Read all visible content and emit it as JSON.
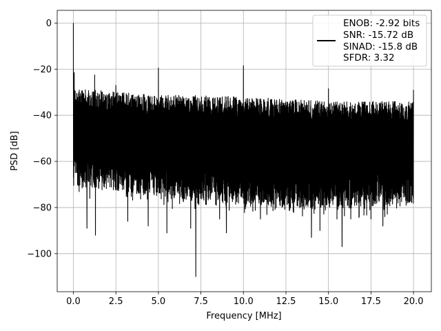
{
  "chart_data": {
    "type": "line",
    "xlabel": "Frequency [MHz]",
    "ylabel": "PSD [dB]",
    "xlim": [
      -0.95,
      21.05
    ],
    "ylim": [
      -116.5,
      5.5
    ],
    "xticks": [
      0.0,
      2.5,
      5.0,
      7.5,
      10.0,
      12.5,
      15.0,
      17.5,
      20.0
    ],
    "xtick_labels": [
      "0.0",
      "2.5",
      "5.0",
      "7.5",
      "10.0",
      "12.5",
      "15.0",
      "17.5",
      "20.0"
    ],
    "yticks": [
      0,
      -20,
      -40,
      -60,
      -80,
      -100
    ],
    "ytick_labels": [
      "0",
      "−20",
      "−40",
      "−60",
      "−80",
      "−100"
    ],
    "grid": true,
    "legend_position": "top-right",
    "legend": [
      "ENOB: -2.92 bits",
      "SNR: -15.72 dB",
      "SINAD: -15.8 dB",
      "SFDR: 3.32"
    ],
    "series": [
      {
        "color": "#000000",
        "x_range": [
          0.0,
          20.0
        ],
        "noise_ceiling": [
          [
            0.0,
            -28
          ],
          [
            2.5,
            -30
          ],
          [
            5.0,
            -31
          ],
          [
            10.0,
            -32
          ],
          [
            12.5,
            -33
          ],
          [
            15.0,
            -34
          ],
          [
            20.0,
            -34
          ]
        ],
        "noise_floor": [
          [
            0.0,
            -70
          ],
          [
            5.0,
            -75
          ],
          [
            10.0,
            -79
          ],
          [
            15.0,
            -80
          ],
          [
            20.0,
            -78
          ]
        ],
        "spurs": [
          [
            0.0,
            0
          ],
          [
            0.05,
            -21.5
          ],
          [
            1.25,
            -22.5
          ],
          [
            2.5,
            -27
          ],
          [
            5.0,
            -19.5
          ],
          [
            10.0,
            -18.5
          ],
          [
            15.0,
            -28.5
          ],
          [
            20.0,
            -29
          ]
        ],
        "dips": [
          [
            0.8,
            -89
          ],
          [
            1.3,
            -92
          ],
          [
            3.2,
            -86
          ],
          [
            4.4,
            -88
          ],
          [
            5.5,
            -91
          ],
          [
            6.9,
            -89
          ],
          [
            7.2,
            -110
          ],
          [
            8.6,
            -85
          ],
          [
            9.0,
            -91
          ],
          [
            11.0,
            -85
          ],
          [
            14.0,
            -93
          ],
          [
            14.5,
            -90
          ],
          [
            15.5,
            -85
          ],
          [
            15.8,
            -97
          ],
          [
            17.5,
            -85
          ],
          [
            18.2,
            -88
          ]
        ]
      }
    ]
  }
}
